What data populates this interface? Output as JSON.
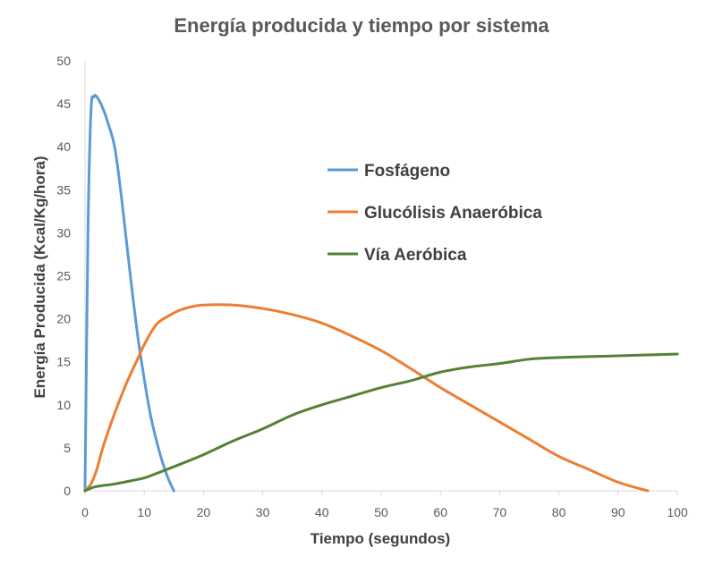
{
  "chart_data": {
    "type": "line",
    "title": "Energía producida y tiempo por sistema",
    "xlabel": "Tiempo (segundos)",
    "ylabel": "Energía Producida (Kcal/Kg/hora)",
    "xlim": [
      0,
      100
    ],
    "ylim": [
      0,
      50
    ],
    "xticks": [
      0,
      10,
      20,
      30,
      40,
      50,
      60,
      70,
      80,
      90,
      100
    ],
    "yticks": [
      0,
      5,
      10,
      15,
      20,
      25,
      30,
      35,
      40,
      45,
      50
    ],
    "grid": false,
    "legend_position": "center-right",
    "series": [
      {
        "name": "Fosfágeno",
        "color": "#5B9BD5",
        "x": [
          0,
          0.5,
          1,
          1.5,
          2,
          3,
          4,
          5,
          6,
          7,
          8,
          9,
          10,
          11,
          12,
          13,
          14,
          15
        ],
        "y": [
          0,
          30,
          44,
          45.8,
          45.8,
          44.5,
          42.5,
          40,
          35,
          29,
          23,
          17.5,
          13,
          9,
          6,
          3.5,
          1.5,
          0
        ]
      },
      {
        "name": "Glucólisis Anaeróbica",
        "color": "#ED7D31",
        "x": [
          0,
          1,
          2,
          3,
          5,
          7,
          9,
          10,
          12,
          14,
          16,
          18,
          20,
          25,
          30,
          35,
          40,
          45,
          50,
          55,
          60,
          65,
          70,
          75,
          80,
          85,
          90,
          95
        ],
        "y": [
          0,
          0.8,
          2.5,
          5,
          9,
          12.5,
          15.5,
          17,
          19.3,
          20.3,
          21,
          21.4,
          21.6,
          21.6,
          21.2,
          20.5,
          19.5,
          18,
          16.3,
          14.2,
          12,
          10,
          8,
          6,
          4,
          2.5,
          1,
          0
        ]
      },
      {
        "name": "Vía Aeróbica",
        "color": "#548235",
        "x": [
          0,
          1,
          2,
          5,
          8,
          10,
          12,
          15,
          20,
          25,
          30,
          35,
          40,
          45,
          50,
          55,
          60,
          65,
          70,
          75,
          80,
          85,
          90,
          95,
          100
        ],
        "y": [
          0,
          0.3,
          0.5,
          0.8,
          1.2,
          1.5,
          2,
          2.8,
          4.2,
          5.8,
          7.2,
          8.8,
          10,
          11,
          12,
          12.8,
          13.8,
          14.4,
          14.8,
          15.3,
          15.5,
          15.6,
          15.7,
          15.8,
          15.9
        ]
      }
    ]
  }
}
